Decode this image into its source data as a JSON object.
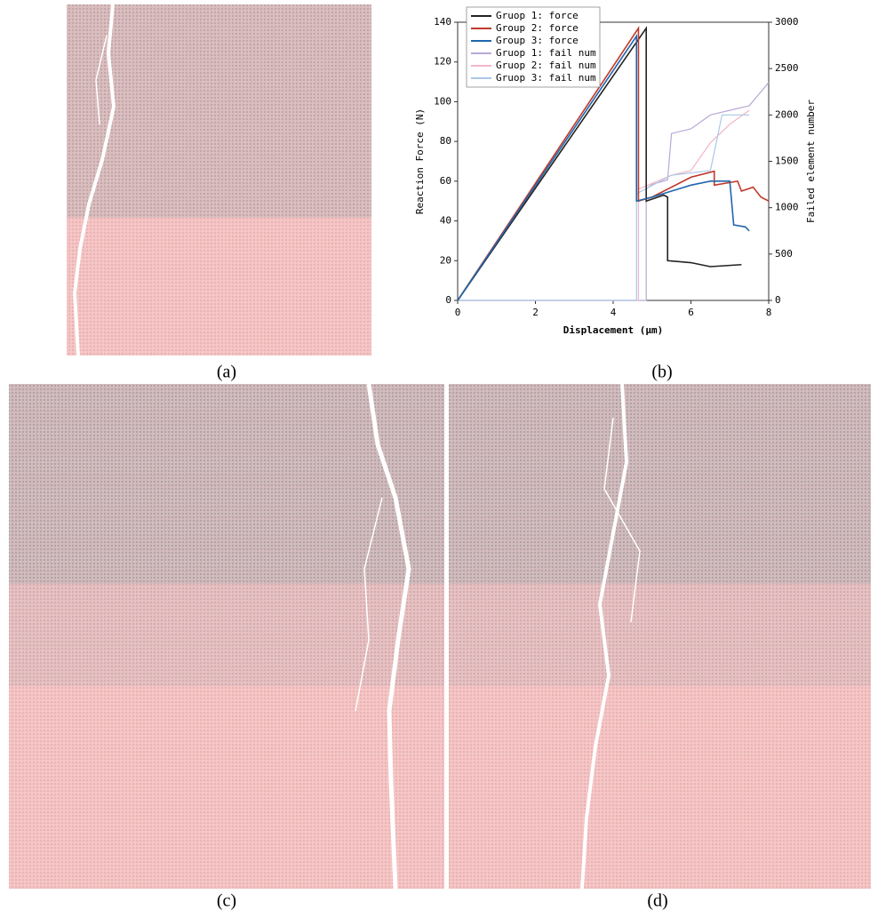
{
  "captions": [
    "(a)",
    "(b)",
    "(c)",
    "(d)"
  ],
  "chart_data": {
    "type": "line",
    "x_label": "Displacement (μm)",
    "y_label": "Reaction Force (N)",
    "y2_label": "Failed element number",
    "xlim": [
      0,
      8
    ],
    "xticks": [
      0,
      2,
      4,
      6,
      8
    ],
    "ylim": [
      0,
      140
    ],
    "yticks": [
      0,
      20,
      40,
      60,
      80,
      100,
      120,
      140
    ],
    "y2lim": [
      0,
      3000
    ],
    "y2ticks": [
      0,
      500,
      1000,
      1500,
      2000,
      2500,
      3000
    ],
    "legend": "upper left",
    "series": [
      {
        "name": "Gruop 1: force",
        "color": "#222222",
        "x": [
          0,
          4.85,
          4.85,
          5.3,
          5.4,
          5.4,
          6,
          6.5,
          7.3
        ],
        "values": [
          0,
          137,
          50,
          53,
          52,
          20,
          19,
          17,
          18
        ]
      },
      {
        "name": "Group 2: force",
        "color": "#c0392b",
        "x": [
          0,
          4.65,
          4.65,
          5,
          5.5,
          6,
          6.6,
          6.6,
          7.2,
          7.3,
          7.6,
          7.8,
          8
        ],
        "values": [
          0,
          137,
          50,
          52,
          57,
          62,
          65,
          58,
          60,
          55,
          57,
          52,
          50
        ]
      },
      {
        "name": "Group 3: force",
        "color": "#2166ac",
        "x": [
          0,
          4.6,
          4.6,
          5,
          5.5,
          6,
          6.5,
          7,
          7.1,
          7.4,
          7.5
        ],
        "values": [
          0,
          133,
          50,
          52,
          55,
          58,
          60,
          60,
          38,
          37,
          35
        ]
      },
      {
        "name": "Gruop 1: fail num",
        "color": "#b9a9d6",
        "axis": "y2",
        "x": [
          0,
          4.85,
          4.85,
          5,
          5.4,
          5.5,
          6,
          6.5,
          7,
          7.5,
          8
        ],
        "values": [
          0,
          0,
          1200,
          1250,
          1300,
          1800,
          1850,
          2000,
          2050,
          2100,
          2350
        ]
      },
      {
        "name": "Gruop 2: fail num",
        "color": "#f2b6c6",
        "axis": "y2",
        "x": [
          0,
          4.65,
          4.65,
          5.5,
          6,
          6.5,
          7,
          7.5
        ],
        "values": [
          0,
          0,
          1200,
          1350,
          1400,
          1700,
          1900,
          2050
        ]
      },
      {
        "name": "Gruop 3: fail num",
        "color": "#a9c8e8",
        "axis": "y2",
        "x": [
          0,
          4.6,
          4.6,
          5.5,
          6.5,
          6.8,
          7.5
        ],
        "values": [
          0,
          0,
          1150,
          1350,
          1400,
          2000,
          2000
        ]
      }
    ]
  }
}
